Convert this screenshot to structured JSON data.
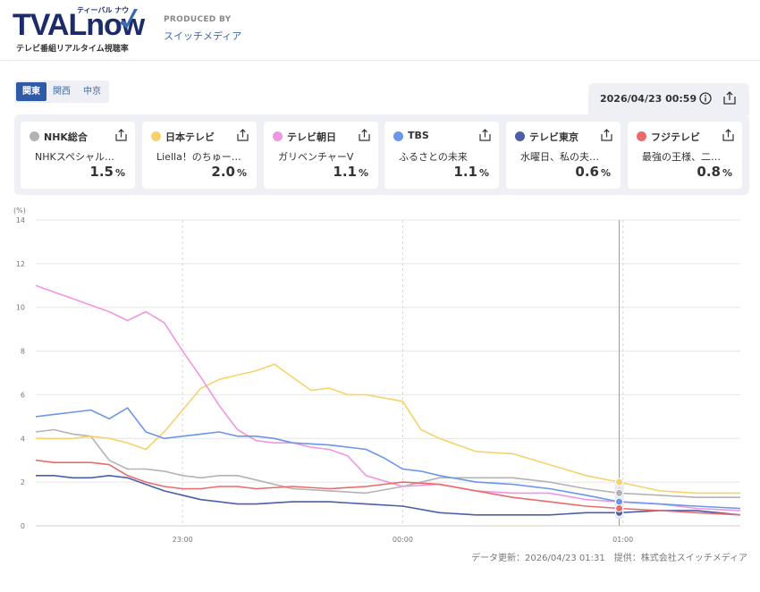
{
  "header": {
    "logo_text": "TVAL",
    "logo_now": "now",
    "logo_kana": "ティーバル ナウ",
    "logo_sub": "テレビ番組リアルタイム視聴率",
    "produced_by": "PRODUCED BY",
    "producer": "スイッチメディア"
  },
  "regions": [
    "関東",
    "関西",
    "中京"
  ],
  "active_region": "関東",
  "datetime": "2026/04/23 00:59",
  "channels": [
    {
      "name": "NHK総合",
      "program": "NHKスペシャル…",
      "rating": "1.5",
      "unit": "%",
      "color": "#b3b3b3"
    },
    {
      "name": "日本テレビ",
      "program": "Liella！のちゅー…",
      "rating": "2.0",
      "unit": "%",
      "color": "#f7d26b"
    },
    {
      "name": "テレビ朝日",
      "program": "ガリベンチャーV",
      "rating": "1.1",
      "unit": "%",
      "color": "#ef97e0"
    },
    {
      "name": "TBS",
      "program": "ふるさとの未来",
      "rating": "1.1",
      "unit": "%",
      "color": "#6b96ea"
    },
    {
      "name": "テレビ東京",
      "program": "水曜日、私の夫…",
      "rating": "0.6",
      "unit": "%",
      "color": "#4a5fa8"
    },
    {
      "name": "フジテレビ",
      "program": "最強の王様、二…",
      "rating": "0.8",
      "unit": "%",
      "color": "#ea6b6b"
    }
  ],
  "chart_data": {
    "type": "line",
    "ylabel": "(%)",
    "ylim": [
      0,
      14
    ],
    "yticks": [
      "0",
      "2",
      "4",
      "6",
      "8",
      "10",
      "12",
      "14"
    ],
    "xticks": [
      "23:00",
      "00:00",
      "01:00"
    ],
    "x_range": [
      "22:20",
      "01:32"
    ],
    "cursor_time": "00:59",
    "grid": true,
    "series": [
      {
        "name": "NHK総合",
        "color": "#b3b3b3",
        "x": [
          "22:20",
          "22:25",
          "22:30",
          "22:35",
          "22:40",
          "22:45",
          "22:50",
          "22:55",
          "23:00",
          "23:05",
          "23:10",
          "23:15",
          "23:20",
          "23:30",
          "23:40",
          "23:50",
          "00:00",
          "00:10",
          "00:20",
          "00:30",
          "00:40",
          "00:50",
          "00:59",
          "01:10",
          "01:20",
          "01:32"
        ],
        "values": [
          4.3,
          4.4,
          4.2,
          4.1,
          3.0,
          2.6,
          2.6,
          2.5,
          2.3,
          2.2,
          2.3,
          2.3,
          2.1,
          1.7,
          1.6,
          1.5,
          1.8,
          2.2,
          2.2,
          2.2,
          2.0,
          1.7,
          1.5,
          1.4,
          1.3,
          1.3
        ]
      },
      {
        "name": "日本テレビ",
        "color": "#f7d26b",
        "x": [
          "22:20",
          "22:25",
          "22:30",
          "22:35",
          "22:40",
          "22:45",
          "22:50",
          "22:55",
          "23:00",
          "23:05",
          "23:10",
          "23:15",
          "23:20",
          "23:25",
          "23:30",
          "23:35",
          "23:40",
          "23:45",
          "23:50",
          "00:00",
          "00:05",
          "00:10",
          "00:20",
          "00:30",
          "00:40",
          "00:50",
          "00:59",
          "01:10",
          "01:20",
          "01:32"
        ],
        "values": [
          4.0,
          4.0,
          4.0,
          4.1,
          4.0,
          3.8,
          3.5,
          4.3,
          5.3,
          6.3,
          6.7,
          6.9,
          7.1,
          7.4,
          6.8,
          6.2,
          6.3,
          6.0,
          6.0,
          5.7,
          4.4,
          4.0,
          3.4,
          3.3,
          2.8,
          2.3,
          2.0,
          1.6,
          1.5,
          1.5
        ]
      },
      {
        "name": "テレビ朝日",
        "color": "#ef97e0",
        "x": [
          "22:20",
          "22:25",
          "22:30",
          "22:35",
          "22:40",
          "22:45",
          "22:50",
          "22:55",
          "23:00",
          "23:05",
          "23:10",
          "23:15",
          "23:20",
          "23:25",
          "23:30",
          "23:35",
          "23:40",
          "23:45",
          "23:50",
          "00:00",
          "00:10",
          "00:20",
          "00:30",
          "00:40",
          "00:50",
          "00:59",
          "01:10",
          "01:20",
          "01:32"
        ],
        "values": [
          11.0,
          10.7,
          10.4,
          10.1,
          9.8,
          9.4,
          9.8,
          9.3,
          8.0,
          6.8,
          5.5,
          4.4,
          3.9,
          3.8,
          3.8,
          3.6,
          3.5,
          3.2,
          2.3,
          1.8,
          1.9,
          1.6,
          1.5,
          1.5,
          1.2,
          1.1,
          1.0,
          0.8,
          0.7
        ]
      },
      {
        "name": "TBS",
        "color": "#6b96ea",
        "x": [
          "22:20",
          "22:25",
          "22:30",
          "22:35",
          "22:40",
          "22:45",
          "22:50",
          "22:55",
          "23:00",
          "23:05",
          "23:10",
          "23:15",
          "23:20",
          "23:25",
          "23:30",
          "23:40",
          "23:50",
          "23:55",
          "00:00",
          "00:05",
          "00:10",
          "00:20",
          "00:30",
          "00:40",
          "00:50",
          "00:59",
          "01:10",
          "01:20",
          "01:32"
        ],
        "values": [
          5.0,
          5.1,
          5.2,
          5.3,
          4.9,
          5.4,
          4.3,
          4.0,
          4.1,
          4.2,
          4.3,
          4.1,
          4.1,
          4.0,
          3.8,
          3.7,
          3.5,
          3.1,
          2.6,
          2.5,
          2.3,
          2.0,
          1.9,
          1.7,
          1.4,
          1.1,
          1.0,
          0.9,
          0.8
        ]
      },
      {
        "name": "テレビ東京",
        "color": "#4a5fa8",
        "x": [
          "22:20",
          "22:25",
          "22:30",
          "22:35",
          "22:40",
          "22:45",
          "22:50",
          "22:55",
          "23:00",
          "23:05",
          "23:10",
          "23:15",
          "23:20",
          "23:30",
          "23:40",
          "23:50",
          "00:00",
          "00:10",
          "00:20",
          "00:30",
          "00:40",
          "00:50",
          "00:59",
          "01:10",
          "01:20",
          "01:32"
        ],
        "values": [
          2.3,
          2.3,
          2.2,
          2.2,
          2.3,
          2.2,
          1.9,
          1.6,
          1.4,
          1.2,
          1.1,
          1.0,
          1.0,
          1.1,
          1.1,
          1.0,
          0.9,
          0.6,
          0.5,
          0.5,
          0.5,
          0.6,
          0.6,
          0.7,
          0.7,
          0.5
        ]
      },
      {
        "name": "フジテレビ",
        "color": "#ea6b6b",
        "x": [
          "22:20",
          "22:25",
          "22:30",
          "22:35",
          "22:40",
          "22:45",
          "22:50",
          "22:55",
          "23:00",
          "23:05",
          "23:10",
          "23:15",
          "23:20",
          "23:30",
          "23:40",
          "23:50",
          "00:00",
          "00:10",
          "00:20",
          "00:30",
          "00:40",
          "00:50",
          "00:59",
          "01:10",
          "01:20",
          "01:32"
        ],
        "values": [
          3.0,
          2.9,
          2.9,
          2.9,
          2.8,
          2.3,
          2.0,
          1.8,
          1.7,
          1.7,
          1.8,
          1.8,
          1.7,
          1.8,
          1.7,
          1.8,
          2.0,
          1.9,
          1.6,
          1.3,
          1.1,
          0.9,
          0.8,
          0.7,
          0.6,
          0.5
        ]
      }
    ]
  },
  "footer": "データ更新：2026/04/23 01:31　提供：株式会社スイッチメディア"
}
